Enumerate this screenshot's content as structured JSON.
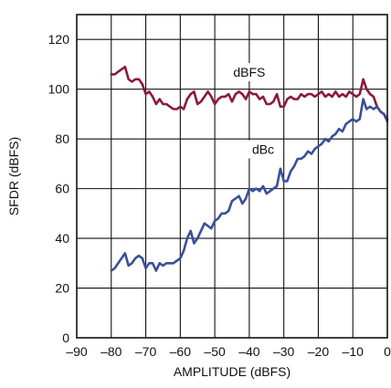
{
  "chart_data": {
    "type": "line",
    "title": "",
    "xlabel": "AMPLITUDE (dBFS)",
    "ylabel": "SFDR (dBFS)",
    "xlim": [
      -90,
      0
    ],
    "ylim": [
      0,
      130
    ],
    "xticks": [
      -90,
      -80,
      -70,
      -60,
      -50,
      -40,
      -30,
      -20,
      -10,
      0
    ],
    "xtick_labels": [
      "–90",
      "–80",
      "–70",
      "–60",
      "–50",
      "–40",
      "–30",
      "–20",
      "–10",
      "0"
    ],
    "yticks": [
      0,
      20,
      40,
      60,
      80,
      100,
      120
    ],
    "ytick_labels": [
      "0",
      "20",
      "40",
      "60",
      "80",
      "100",
      "120"
    ],
    "grid": true,
    "legend": "none",
    "series": [
      {
        "name": "dBFS",
        "color": "#8b1a3a",
        "x": [
          -80,
          -79,
          -78,
          -77,
          -76,
          -75,
          -74,
          -73,
          -72,
          -71,
          -70,
          -69,
          -68,
          -67,
          -66,
          -65,
          -64,
          -63,
          -62,
          -61,
          -60,
          -59,
          -58,
          -57,
          -56,
          -55,
          -54,
          -53,
          -52,
          -51,
          -50,
          -49,
          -48,
          -47,
          -46,
          -45,
          -44,
          -43,
          -42,
          -41,
          -40,
          -39,
          -38,
          -37,
          -36,
          -35,
          -34,
          -33,
          -32,
          -31,
          -30,
          -29,
          -28,
          -27,
          -26,
          -25,
          -24,
          -23,
          -22,
          -21,
          -20,
          -19,
          -18,
          -17,
          -16,
          -15,
          -14,
          -13,
          -12,
          -11,
          -10,
          -9,
          -8,
          -7,
          -6,
          -5,
          -4,
          -3,
          -2,
          -1,
          0
        ],
        "y": [
          106,
          106,
          107,
          108,
          109,
          104,
          103,
          104,
          104,
          102,
          98,
          99,
          97,
          94,
          96,
          94,
          94,
          93,
          92,
          92,
          93,
          92,
          96,
          98,
          99,
          94,
          95,
          97,
          99,
          97,
          94,
          96,
          97,
          97,
          98,
          95,
          98,
          99,
          98,
          96,
          99,
          98,
          98,
          96,
          97,
          94,
          94,
          95,
          98,
          93,
          93,
          96,
          97,
          96,
          96,
          98,
          97,
          98,
          98,
          97,
          98,
          99,
          97,
          98,
          97,
          99,
          97,
          98,
          97,
          99,
          98,
          97,
          98,
          104,
          100,
          98,
          97,
          93,
          91,
          90,
          88
        ]
      },
      {
        "name": "dBc",
        "color": "#3a4f99",
        "x": [
          -80,
          -79,
          -78,
          -77,
          -76,
          -75,
          -74,
          -73,
          -72,
          -71,
          -70,
          -69,
          -68,
          -67,
          -66,
          -65,
          -64,
          -63,
          -62,
          -61,
          -60,
          -59,
          -58,
          -57,
          -56,
          -55,
          -54,
          -53,
          -52,
          -51,
          -50,
          -49,
          -48,
          -47,
          -46,
          -45,
          -44,
          -43,
          -42,
          -41,
          -40,
          -39,
          -38,
          -37,
          -36,
          -35,
          -34,
          -33,
          -32,
          -31,
          -30,
          -29,
          -28,
          -27,
          -26,
          -25,
          -24,
          -23,
          -22,
          -21,
          -20,
          -19,
          -18,
          -17,
          -16,
          -15,
          -14,
          -13,
          -12,
          -11,
          -10,
          -9,
          -8,
          -7,
          -6,
          -5,
          -4,
          -3,
          -2,
          -1,
          0
        ],
        "y": [
          27,
          28,
          30,
          32,
          34,
          29,
          30,
          32,
          33,
          32,
          28,
          30,
          30,
          27,
          30,
          29,
          30,
          30,
          30,
          31,
          32,
          35,
          40,
          43,
          38,
          40,
          43,
          46,
          45,
          44,
          47,
          48,
          50,
          50,
          51,
          55,
          56,
          57,
          54,
          56,
          60,
          59,
          60,
          59,
          61,
          58,
          59,
          60,
          61,
          68,
          63,
          63,
          67,
          69,
          72,
          72,
          73,
          75,
          74,
          76,
          77,
          78,
          80,
          79,
          81,
          82,
          84,
          83,
          86,
          87,
          88,
          87,
          88,
          96,
          92,
          93,
          92,
          93,
          91,
          90,
          87
        ]
      }
    ],
    "annotations": [
      {
        "text": "dBFS",
        "x": -40,
        "y": 105
      },
      {
        "text": "dBc",
        "x": -36,
        "y": 74
      }
    ]
  }
}
